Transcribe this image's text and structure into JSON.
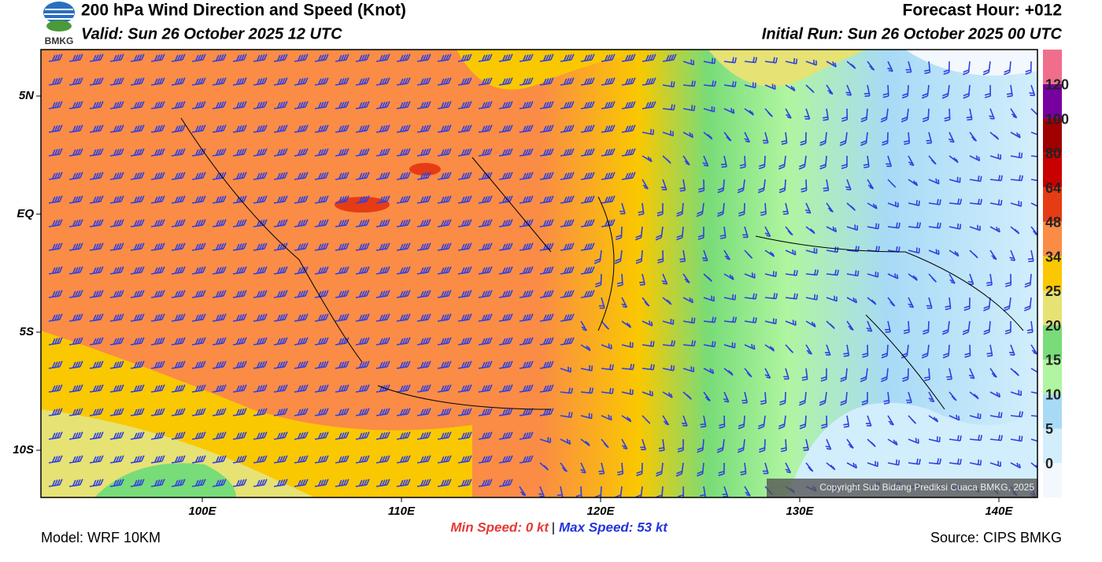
{
  "header": {
    "logo": "BMKG",
    "title": "200 hPa Wind Direction and Speed (Knot)",
    "valid": "Valid: Sun 26 October 2025 12 UTC",
    "forecast_hour": "Forecast Hour: +012",
    "initial_run": "Initial Run: Sun 26 October 2025 00 UTC"
  },
  "map": {
    "lat_labels": [
      "5N",
      "EQ",
      "5S",
      "10S"
    ],
    "lon_labels": [
      "100E",
      "110E",
      "120E",
      "130E",
      "140E"
    ],
    "copyright": "Copyright Sub Bidang Prediksi Cuaca BMKG, 2025"
  },
  "colorbar": {
    "levels": [
      0,
      5,
      10,
      15,
      20,
      25,
      34,
      48,
      64,
      80,
      100,
      120
    ],
    "colors": [
      "#f2f8fd",
      "#d2eefc",
      "#a8daf6",
      "#b0f5a0",
      "#78dc78",
      "#e6e274",
      "#fac800",
      "#fa8c46",
      "#e63c14",
      "#c80000",
      "#a00000",
      "#7800a0",
      "#f06e8c"
    ]
  },
  "footer": {
    "model": "Model: WRF 10KM",
    "min_speed": "Min Speed:  0 kt",
    "separator": "|",
    "max_speed": "Max Speed:  53 kt",
    "source": "Source: CIPS BMKG"
  }
}
